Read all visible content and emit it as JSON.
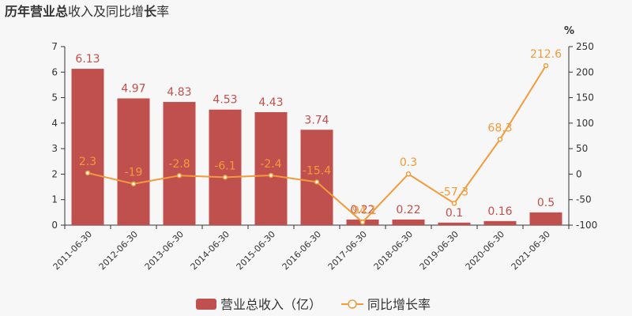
{
  "title": {
    "parts": [
      {
        "text": "历年",
        "bold": true
      },
      {
        "text": "营业",
        "bold": true
      },
      {
        "text": "总",
        "bold": true
      },
      {
        "text": "收入及同比增",
        "bold": false
      },
      {
        "text": "长",
        "bold": true
      },
      {
        "text": "率",
        "bold": false
      }
    ]
  },
  "colors": {
    "bar": "#c0504d",
    "line": "#f29b3b",
    "axis": "#333333"
  },
  "chart_data": {
    "type": "bar",
    "categories": [
      "2011-06-30",
      "2012-06-30",
      "2013-06-30",
      "2014-06-30",
      "2015-06-30",
      "2016-06-30",
      "2017-06-30",
      "2018-06-30",
      "2019-06-30",
      "2020-06-30",
      "2021-06-30"
    ],
    "series": [
      {
        "name": "营业总收入（亿）",
        "type": "bar",
        "axis": "left",
        "values": [
          6.13,
          4.97,
          4.83,
          4.53,
          4.43,
          3.74,
          0.22,
          0.22,
          0.1,
          0.16,
          0.5
        ],
        "labels": [
          "6.13",
          "4.97",
          "4.83",
          "4.53",
          "4.43",
          "3.74",
          "0.22",
          "0.22",
          "0.1",
          "0.16",
          "0.5"
        ]
      },
      {
        "name": "同比增长率",
        "type": "line",
        "axis": "right",
        "values": [
          2.3,
          -19,
          -2.8,
          -6.1,
          -2.4,
          -15.4,
          -94.1,
          0.3,
          -57.3,
          68.3,
          212.6
        ],
        "labels": [
          "2.3",
          "-19",
          "-2.8",
          "-6.1",
          "-2.4",
          "-15.4",
          "-94.1",
          "0.3",
          "-57.3",
          "68.3",
          "212.6"
        ]
      }
    ],
    "y_left": {
      "ylim": [
        0,
        7
      ],
      "ticks": [
        "0",
        "1",
        "2",
        "3",
        "4",
        "5",
        "6",
        "7"
      ]
    },
    "y_right": {
      "ylim": [
        -100,
        250
      ],
      "ticks": [
        "-100",
        "-50",
        "0",
        "50",
        "100",
        "150",
        "200",
        "250"
      ],
      "unit": "%"
    },
    "legend_position": "bottom-center",
    "grid": false
  }
}
